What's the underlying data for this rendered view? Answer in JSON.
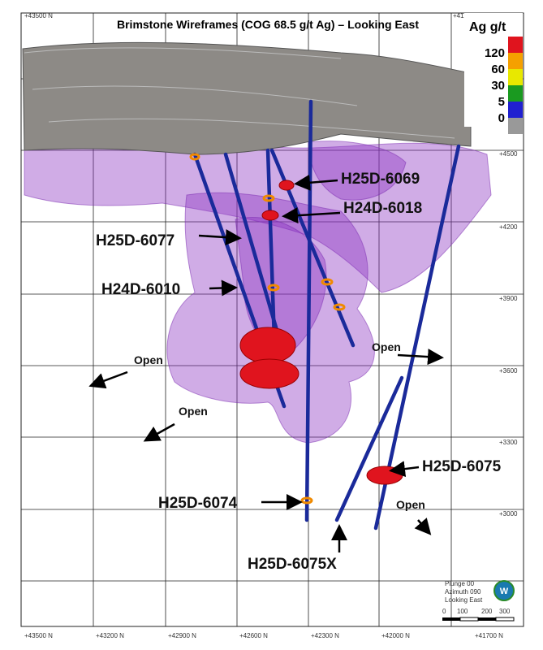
{
  "title": "Brimstone Wireframes (COG 68.5 g/t Ag) – Looking East",
  "legend": {
    "title": "Ag g/t",
    "labels": [
      "120",
      "60",
      "30",
      "5",
      "0"
    ]
  },
  "grid": {
    "top_labels": [
      "+43500 N",
      "+41"
    ],
    "right_labels": [
      "+4500",
      "+4200",
      "+3900",
      "+3600",
      "+3300",
      "+3000"
    ],
    "bottom_labels": [
      "+43500 N",
      "+43200 N",
      "+42900 N",
      "+42600 N",
      "+42300 N",
      "+42000 N",
      "+41700 N"
    ]
  },
  "drill_holes": [
    {
      "label": "H25D-6069"
    },
    {
      "label": "H24D-6018"
    },
    {
      "label": "H25D-6077"
    },
    {
      "label": "H24D-6010"
    },
    {
      "label": "H25D-6075"
    },
    {
      "label": "H25D-6074"
    },
    {
      "label": "H25D-6075X"
    }
  ],
  "open_labels": [
    "Open",
    "Open",
    "Open",
    "Open"
  ],
  "orientation": {
    "plunge": "Plunge 00",
    "azimuth": "Azimuth 090",
    "view": "Looking East",
    "compass": "W"
  },
  "scale_labels": [
    "0",
    "100",
    "200",
    "300"
  ]
}
